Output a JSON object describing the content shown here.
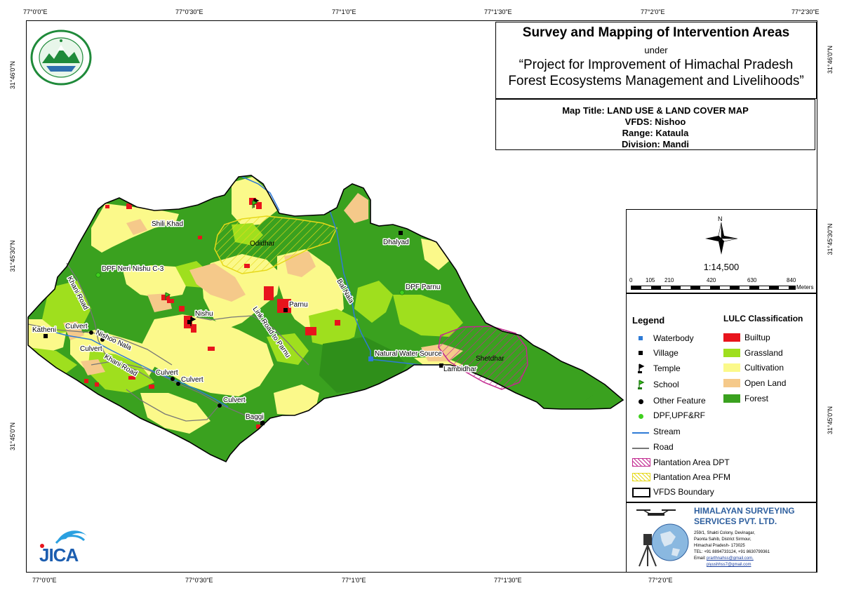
{
  "coords": {
    "top": [
      "77°0'0\"E",
      "77°0'30\"E",
      "77°1'0\"E",
      "77°1'30\"E",
      "77°2'0\"E",
      "77°2'30\"E"
    ],
    "bottom": [
      "77°0'0\"E",
      "77°0'30\"E",
      "77°1'0\"E",
      "77°1'30\"E",
      "77°2'0\"E"
    ],
    "left": [
      "31°46'0\"N",
      "31°45'30\"N",
      "31°45'0\"N"
    ],
    "right": [
      "31°46'0\"N",
      "31°45'30\"N",
      "31°45'0\"N"
    ]
  },
  "title": {
    "main": "Survey and Mapping of Intervention Areas",
    "under": "under",
    "project_line1": "“Project for Improvement of Himachal Pradesh",
    "project_line2": "Forest Ecosystems Management and Livelihoods”"
  },
  "info": {
    "map_title": "Map Title: LAND USE & LAND COVER MAP",
    "vfds": "VFDS: Nishoo",
    "range": "Range: Kataula",
    "division": "Division: Mandi"
  },
  "scale": {
    "north": "N",
    "ratio": "1:14,500",
    "ticks": [
      "0",
      "105",
      "210",
      "420",
      "630",
      "840"
    ],
    "unit": "Meters"
  },
  "legend": {
    "title": "Legend",
    "items": [
      "Waterbody",
      "Village",
      "Temple",
      "School",
      "Other Feature",
      "DPF,UPF&RF",
      "Stream",
      "Road",
      "Plantation Area DPT",
      "Plantation Area PFM",
      "VFDS Boundary"
    ]
  },
  "lulc": {
    "title": "LULC Classification",
    "items": [
      {
        "label": "Builtup",
        "color": "#e8141c"
      },
      {
        "label": "Grassland",
        "color": "#9fdf1e"
      },
      {
        "label": "Cultivation",
        "color": "#fbf98a"
      },
      {
        "label": "Open Land",
        "color": "#f5c98a"
      },
      {
        "label": "Forest",
        "color": "#3aa11f"
      }
    ]
  },
  "company": {
    "name_line1": "HIMALAYAN SURVEYING",
    "name_line2": "SERVICES PVT. LTD.",
    "address1": "259/1, Shakti Colony, Devinagar,",
    "address2": "Paonta Sahib, District Sirmour,",
    "address3": "Himachal Pradesh- 173025",
    "tel": "TEL: +91 8894733124, +91 8630799361",
    "email_label": "Email: ",
    "email1": "prarthnahss@gmail.com,",
    "email2": "piyushhss7@gmail.com"
  },
  "logos": {
    "jica": "JICA"
  },
  "map_labels": {
    "shili_khad": "Shili Khad",
    "odidhar": "Odidhar",
    "dhalyad": "Dhalyad",
    "dpf_neri": "DPF Neri Nishu C-3",
    "dpf_parnu": "DPF Parnu",
    "khani_road_1": "Khani Road",
    "khani_road_2": "Khani Road",
    "bal_nala": "Bal Nala",
    "parnu": "Parnu",
    "nishu": "Nishu",
    "link_road": "Link Road to Parnu",
    "katheni": "Katheni",
    "culvert_1": "Culvert",
    "nishoo_nala": "Nishoo Nala",
    "culvert_2": "Culvert",
    "culvert_3": "Culvert",
    "culvert_4": "Culvert",
    "culvert_5": "Culvert",
    "natural_water": "Natural Water Source",
    "shetdhar": "Shetdhar",
    "lambidhar": "Lambidhar",
    "baggi": "Baggi"
  },
  "colors": {
    "forest": "#3aa11f",
    "grassland": "#9fdf1e",
    "cultivation": "#fbf98a",
    "openland": "#f5c98a",
    "builtup": "#e8141c",
    "stream": "#2e7bd6",
    "road": "#777777",
    "plantation_dpt": "#c2288f",
    "plantation_pfm": "#e6d81a"
  }
}
